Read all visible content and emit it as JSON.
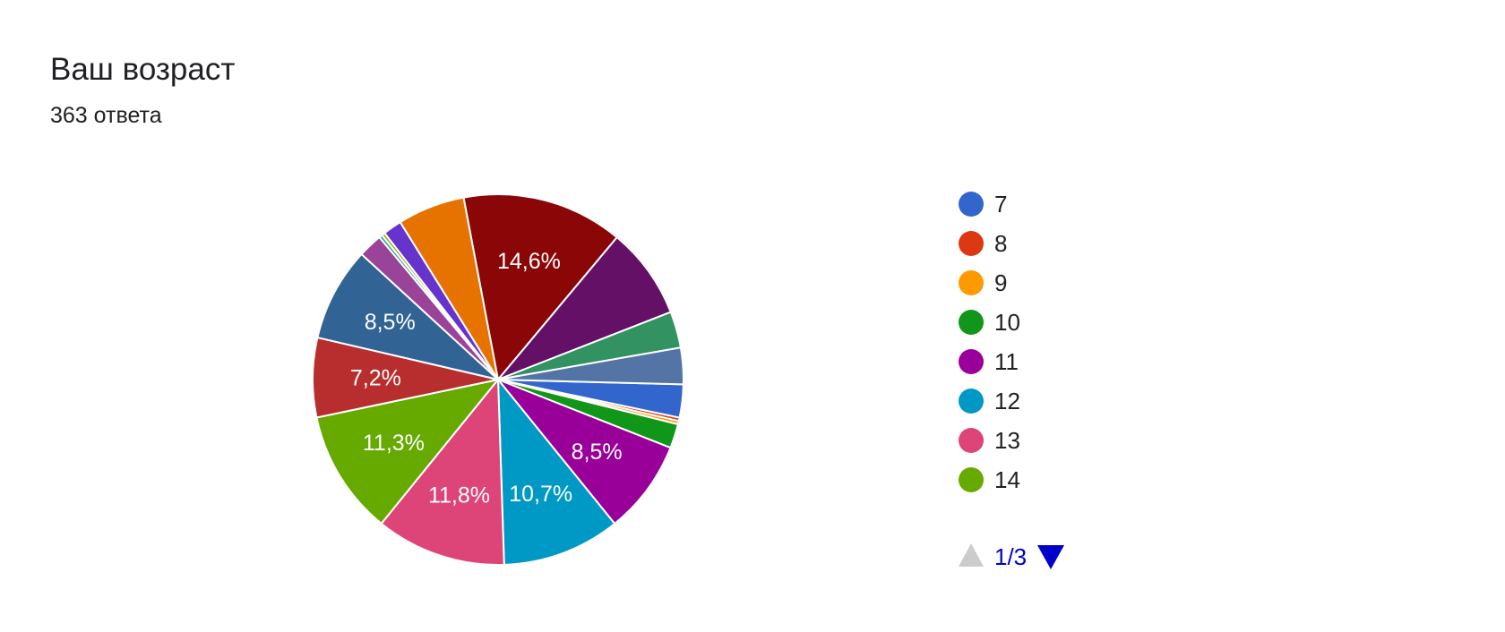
{
  "header": {
    "title": "Ваш возраст",
    "subtitle": "363 ответа"
  },
  "chart_data": {
    "type": "pie",
    "total_responses": 363,
    "slices": [
      {
        "label": "7",
        "percent": 3.0,
        "color": "#3366cc",
        "data_label": ""
      },
      {
        "label": "8",
        "percent": 0.3,
        "color": "#dc3912",
        "data_label": ""
      },
      {
        "label": "9",
        "percent": 0.3,
        "color": "#ff9900",
        "data_label": ""
      },
      {
        "label": "10",
        "percent": 2.2,
        "color": "#109618",
        "data_label": ""
      },
      {
        "label": "11",
        "percent": 8.5,
        "color": "#990099",
        "data_label": "8,5%"
      },
      {
        "label": "12",
        "percent": 10.7,
        "color": "#0099c6",
        "data_label": "10,7%"
      },
      {
        "label": "13",
        "percent": 11.8,
        "color": "#dd4477",
        "data_label": "11,8%"
      },
      {
        "label": "14",
        "percent": 11.3,
        "color": "#66aa00",
        "data_label": "11,3%"
      },
      {
        "label": "",
        "percent": 7.2,
        "color": "#b82e2e",
        "data_label": "7,2%"
      },
      {
        "label": "",
        "percent": 8.5,
        "color": "#316395",
        "data_label": "8,5%"
      },
      {
        "label": "",
        "percent": 2.2,
        "color": "#994499",
        "data_label": ""
      },
      {
        "label": "",
        "percent": 0.3,
        "color": "#22aa99",
        "data_label": ""
      },
      {
        "label": "",
        "percent": 0.3,
        "color": "#aaaa11",
        "data_label": ""
      },
      {
        "label": "",
        "percent": 1.7,
        "color": "#6633cc",
        "data_label": ""
      },
      {
        "label": "",
        "percent": 6.1,
        "color": "#e67300",
        "data_label": ""
      },
      {
        "label": "",
        "percent": 14.6,
        "color": "#8b0707",
        "data_label": "14,6%"
      },
      {
        "label": "",
        "percent": 8.3,
        "color": "#651067",
        "data_label": ""
      },
      {
        "label": "",
        "percent": 3.3,
        "color": "#329262",
        "data_label": ""
      },
      {
        "label": "",
        "percent": 3.3,
        "color": "#5574a6",
        "data_label": ""
      }
    ],
    "legend": {
      "placement": "right",
      "entries": [
        {
          "label": "7",
          "color": "#3366cc"
        },
        {
          "label": "8",
          "color": "#dc3912"
        },
        {
          "label": "9",
          "color": "#ff9900"
        },
        {
          "label": "10",
          "color": "#109618"
        },
        {
          "label": "11",
          "color": "#990099"
        },
        {
          "label": "12",
          "color": "#0099c6"
        },
        {
          "label": "13",
          "color": "#dd4477"
        },
        {
          "label": "14",
          "color": "#66aa00"
        }
      ],
      "pager": "1/3"
    }
  }
}
